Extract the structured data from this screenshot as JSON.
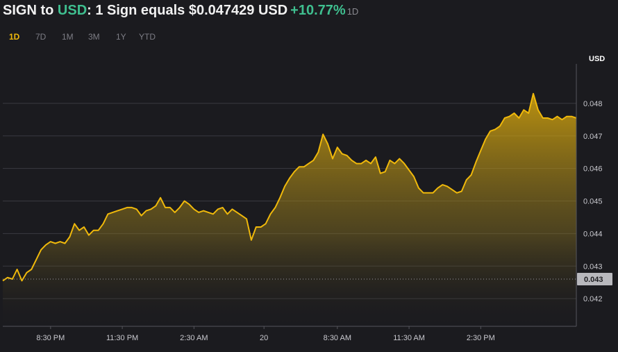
{
  "header": {
    "base": "SIGN",
    "to_word": " to ",
    "quote": "USD",
    "rest": ": 1 Sign equals $0.047429 USD",
    "change": "+10.77%",
    "period": "1D"
  },
  "ranges": [
    "1D",
    "7D",
    "1M",
    "3M",
    "1Y",
    "YTD"
  ],
  "active_range": "1D",
  "colors": {
    "line": "#f0b90b",
    "up": "#3fbf8f",
    "background": "#1b1b1f"
  },
  "chart_data": {
    "type": "area",
    "unit": "USD",
    "y_ticks": [
      "0.048",
      "0.047",
      "0.046",
      "0.045",
      "0.044",
      "0.043",
      "0.042"
    ],
    "y_tick_values": [
      0.048,
      0.047,
      0.046,
      0.045,
      0.044,
      0.043,
      0.042
    ],
    "ylim": [
      0.04115,
      0.04915
    ],
    "x_ticks": [
      "8:30 PM",
      "11:30 PM",
      "2:30 AM",
      "20",
      "8:30 AM",
      "11:30 AM",
      "2:30 PM"
    ],
    "x_tick_hours": [
      2,
      5,
      8,
      10.93,
      14,
      17,
      20
    ],
    "xlim": [
      0,
      24
    ],
    "reference_price": 0.0426,
    "reference_label": "0.043",
    "grid": true,
    "series": [
      {
        "x": [
          0,
          0.2,
          0.4,
          0.6,
          0.8,
          1.0,
          1.2,
          1.4,
          1.6,
          1.8,
          2.0,
          2.2,
          2.4,
          2.6,
          2.8,
          3.0,
          3.2,
          3.4,
          3.6,
          3.8,
          4.0,
          4.2,
          4.4,
          4.6,
          4.8,
          5.0,
          5.2,
          5.4,
          5.6,
          5.8,
          6.0,
          6.2,
          6.4,
          6.6,
          6.8,
          7.0,
          7.2,
          7.4,
          7.6,
          7.8,
          8.0,
          8.2,
          8.4,
          8.6,
          8.8,
          9.0,
          9.2,
          9.4,
          9.6,
          9.8,
          10.0,
          10.2,
          10.4,
          10.6,
          10.8,
          11.0,
          11.2,
          11.4,
          11.6,
          11.8,
          12.0,
          12.2,
          12.4,
          12.6,
          12.8,
          13.0,
          13.2,
          13.4,
          13.6,
          13.8,
          14.0,
          14.2,
          14.4,
          14.6,
          14.8,
          15.0,
          15.2,
          15.4,
          15.6,
          15.8,
          16.0,
          16.2,
          16.4,
          16.6,
          16.8,
          17.0,
          17.2,
          17.4,
          17.6,
          17.8,
          18.0,
          18.2,
          18.4,
          18.6,
          18.8,
          19.0,
          19.2,
          19.4,
          19.6,
          19.8,
          20.0,
          20.2,
          20.4,
          20.6,
          20.8,
          21.0,
          21.2,
          21.4,
          21.6,
          21.8,
          22.0,
          22.2,
          22.4,
          22.6,
          22.8,
          23.0,
          23.2,
          23.4,
          23.6,
          23.8,
          24.0
        ],
        "values": [
          0.04255,
          0.04265,
          0.0426,
          0.0429,
          0.04255,
          0.0428,
          0.0429,
          0.0432,
          0.0435,
          0.04365,
          0.04375,
          0.0437,
          0.04375,
          0.0437,
          0.0439,
          0.0443,
          0.0441,
          0.0442,
          0.04395,
          0.0441,
          0.0441,
          0.0443,
          0.0446,
          0.04465,
          0.0447,
          0.04475,
          0.0448,
          0.0448,
          0.04475,
          0.04455,
          0.0447,
          0.04475,
          0.04485,
          0.0451,
          0.0448,
          0.0448,
          0.04465,
          0.0448,
          0.045,
          0.0449,
          0.04475,
          0.04465,
          0.0447,
          0.04465,
          0.0446,
          0.04475,
          0.0448,
          0.0446,
          0.04475,
          0.04465,
          0.04455,
          0.04445,
          0.0438,
          0.0442,
          0.0442,
          0.0443,
          0.0446,
          0.0448,
          0.0451,
          0.04545,
          0.0457,
          0.0459,
          0.04605,
          0.04605,
          0.04615,
          0.04625,
          0.0465,
          0.04705,
          0.04675,
          0.0463,
          0.04665,
          0.04645,
          0.0464,
          0.04625,
          0.04615,
          0.04615,
          0.04625,
          0.04615,
          0.04635,
          0.04585,
          0.0459,
          0.04625,
          0.04615,
          0.0463,
          0.04615,
          0.04595,
          0.04575,
          0.0454,
          0.04525,
          0.04525,
          0.04525,
          0.0454,
          0.0455,
          0.04545,
          0.04535,
          0.04525,
          0.0453,
          0.04565,
          0.0458,
          0.0462,
          0.04655,
          0.0469,
          0.04715,
          0.0472,
          0.0473,
          0.04755,
          0.0476,
          0.0477,
          0.04755,
          0.0478,
          0.0477,
          0.0483,
          0.0478,
          0.04755,
          0.04755,
          0.0475,
          0.0476,
          0.0475,
          0.0476,
          0.0476,
          0.04755
        ]
      }
    ]
  }
}
